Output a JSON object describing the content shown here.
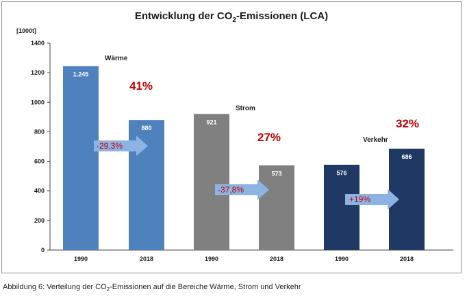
{
  "chart_data": {
    "type": "bar",
    "title_parts": [
      "Entwicklung der CO",
      "2",
      "-Emissionen (LCA)"
    ],
    "unit": "[1000t]",
    "ylim": [
      0,
      1400
    ],
    "yticks": [
      "0",
      "200",
      "400",
      "600",
      "800",
      "1000",
      "1200",
      "1400"
    ],
    "grid": false,
    "groups": [
      {
        "name": "Wärme",
        "color": "#4f81bd",
        "share": "41%",
        "change": "-29,3%",
        "bars": [
          {
            "year": "1990",
            "value": 1245,
            "label": "1.245"
          },
          {
            "year": "2018",
            "value": 880,
            "label": "880"
          }
        ]
      },
      {
        "name": "Strom",
        "color": "#808080",
        "share": "27%",
        "change": "-37,8%",
        "bars": [
          {
            "year": "1990",
            "value": 921,
            "label": "921"
          },
          {
            "year": "2018",
            "value": 573,
            "label": "573"
          }
        ]
      },
      {
        "name": "Verkehr",
        "color": "#1f3864",
        "share": "32%",
        "change": "+19%",
        "bars": [
          {
            "year": "1990",
            "value": 576,
            "label": "576"
          },
          {
            "year": "2018",
            "value": 686,
            "label": "686"
          }
        ]
      }
    ],
    "colors": {
      "share_text": "#c00000",
      "change_text": "#c00000",
      "arrow_fill": "#8db3e2",
      "axis": "#404040"
    }
  },
  "caption": {
    "prefix": "Abbildung 6:  Verteilung der CO",
    "sub": "2",
    "suffix": "-Emissionen auf die Bereiche Wärme, Strom und Verkehr"
  }
}
